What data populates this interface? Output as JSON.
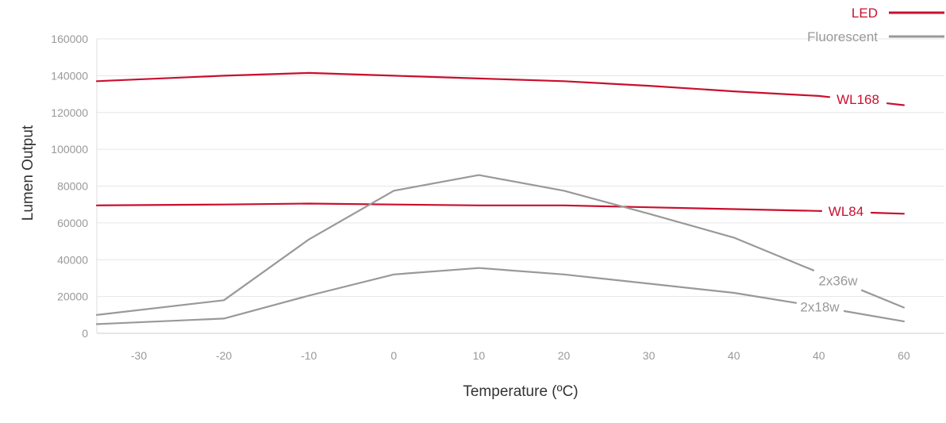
{
  "chart_data": {
    "type": "line",
    "title": "",
    "xlabel": "Temperature (ºC)",
    "ylabel": "Lumen Output",
    "categories": [
      "-30",
      "-20",
      "-10",
      "0",
      "10",
      "20",
      "30",
      "40",
      "40",
      "60"
    ],
    "ylim": [
      0,
      160000
    ],
    "yticks": [
      "0",
      "20000",
      "40000",
      "60000",
      "80000",
      "100000",
      "120000",
      "140000",
      "160000"
    ],
    "grid": true,
    "legend": {
      "placement": "top-right",
      "entries": [
        {
          "label": "LED",
          "color": "#c8102e"
        },
        {
          "label": "Fluorescent",
          "color": "#999999"
        }
      ]
    },
    "series": [
      {
        "name": "WL168",
        "group": "LED",
        "color": "#c8102e",
        "values": [
          137000,
          140000,
          141500,
          140000,
          138500,
          137000,
          134500,
          131500,
          129000,
          124000
        ]
      },
      {
        "name": "WL84",
        "group": "LED",
        "color": "#c8102e",
        "values": [
          69500,
          70000,
          70500,
          70000,
          69500,
          69500,
          68500,
          67500,
          66500,
          65000
        ]
      },
      {
        "name": "2x36w",
        "group": "Fluorescent",
        "color": "#999999",
        "values": [
          10000,
          18000,
          51000,
          77500,
          86000,
          77500,
          65000,
          52000,
          33000,
          14000
        ]
      },
      {
        "name": "2x18w",
        "group": "Fluorescent",
        "color": "#999999",
        "values": [
          5000,
          8000,
          20500,
          32000,
          35500,
          32000,
          27000,
          22000,
          14500,
          6500
        ]
      }
    ]
  }
}
